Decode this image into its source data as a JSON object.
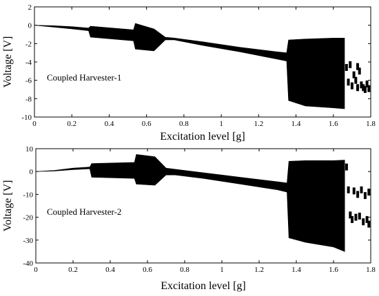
{
  "chart_data": [
    {
      "type": "scatter",
      "annotation": "Coupled Harvester-1",
      "xlabel": "Excitation level [g]",
      "ylabel": "Voltage [V]",
      "xlim": [
        0,
        1.8
      ],
      "ylim": [
        -10,
        2
      ],
      "xticks": [
        "0",
        "0.2",
        "0.4",
        "0.6",
        "0.8",
        "1",
        "1.2",
        "1.4",
        "1.6",
        "1.8"
      ],
      "yticks": [
        "2",
        "0",
        "-2",
        "-4",
        "-6",
        "-8",
        "-10"
      ],
      "grid": false,
      "envelope": {
        "x": [
          0.0,
          0.1,
          0.2,
          0.29,
          0.3,
          0.53,
          0.54,
          0.64,
          0.7,
          0.75,
          0.9,
          1.1,
          1.3,
          1.35,
          1.36,
          1.45,
          1.6,
          1.66
        ],
        "upper": [
          0.0,
          -0.05,
          -0.15,
          -0.3,
          -0.1,
          -0.5,
          0.2,
          -0.4,
          -1.3,
          -1.4,
          -1.8,
          -2.4,
          -2.9,
          -3.0,
          -1.6,
          -1.5,
          -1.4,
          -1.4
        ],
        "lower": [
          0.0,
          -0.2,
          -0.4,
          -0.6,
          -1.3,
          -1.7,
          -2.6,
          -2.8,
          -1.6,
          -1.6,
          -2.2,
          -2.9,
          -3.7,
          -3.9,
          -8.2,
          -8.8,
          -9.0,
          -9.1
        ]
      },
      "scatter_points": [
        {
          "x": 1.67,
          "y": -4.6
        },
        {
          "x": 1.68,
          "y": -6.2
        },
        {
          "x": 1.69,
          "y": -4.3
        },
        {
          "x": 1.7,
          "y": -6.6
        },
        {
          "x": 1.71,
          "y": -5.4
        },
        {
          "x": 1.72,
          "y": -6.0
        },
        {
          "x": 1.73,
          "y": -4.5
        },
        {
          "x": 1.73,
          "y": -6.8
        },
        {
          "x": 1.74,
          "y": -5.0
        },
        {
          "x": 1.75,
          "y": -6.5
        },
        {
          "x": 1.76,
          "y": -6.8
        },
        {
          "x": 1.77,
          "y": -7.0
        },
        {
          "x": 1.78,
          "y": -6.4
        },
        {
          "x": 1.79,
          "y": -6.9
        }
      ]
    },
    {
      "type": "scatter",
      "annotation": "Coupled Harvester-2",
      "xlabel": "Excitation level [g]",
      "ylabel": "Voltage [V]",
      "xlim": [
        0,
        1.8
      ],
      "ylim": [
        -40,
        10
      ],
      "xticks": [
        "0",
        "0.2",
        "0.4",
        "0.6",
        "0.8",
        "1",
        "1.2",
        "1.4",
        "1.6",
        "1.8"
      ],
      "yticks": [
        "10",
        "0",
        "-10",
        "-20",
        "-30",
        "-40"
      ],
      "grid": false,
      "envelope": {
        "x": [
          0.0,
          0.1,
          0.2,
          0.29,
          0.3,
          0.53,
          0.54,
          0.64,
          0.7,
          0.75,
          0.9,
          1.1,
          1.3,
          1.35,
          1.36,
          1.45,
          1.6,
          1.66
        ],
        "upper": [
          0.0,
          0.5,
          1.5,
          2.0,
          3.5,
          4.0,
          7.5,
          6.5,
          1.5,
          1.0,
          -0.5,
          -2.5,
          -4.5,
          -5.0,
          4.5,
          4.8,
          4.8,
          5.0
        ],
        "lower": [
          0.0,
          0.2,
          0.8,
          1.2,
          -2.5,
          -3.0,
          -5.5,
          -6.0,
          -1.5,
          -1.5,
          -3.0,
          -5.5,
          -8.0,
          -9.0,
          -29.0,
          -31.0,
          -33.0,
          -35.0
        ]
      },
      "scatter_points": [
        {
          "x": 1.67,
          "y": 2.0
        },
        {
          "x": 1.68,
          "y": -8.0
        },
        {
          "x": 1.69,
          "y": -19.0
        },
        {
          "x": 1.7,
          "y": -21.0
        },
        {
          "x": 1.71,
          "y": -8.5
        },
        {
          "x": 1.72,
          "y": -20.0
        },
        {
          "x": 1.73,
          "y": -10.0
        },
        {
          "x": 1.74,
          "y": -19.5
        },
        {
          "x": 1.75,
          "y": -8.0
        },
        {
          "x": 1.76,
          "y": -22.0
        },
        {
          "x": 1.77,
          "y": -10.5
        },
        {
          "x": 1.78,
          "y": -21.0
        },
        {
          "x": 1.79,
          "y": -9.0
        },
        {
          "x": 1.79,
          "y": -23.0
        }
      ]
    }
  ]
}
